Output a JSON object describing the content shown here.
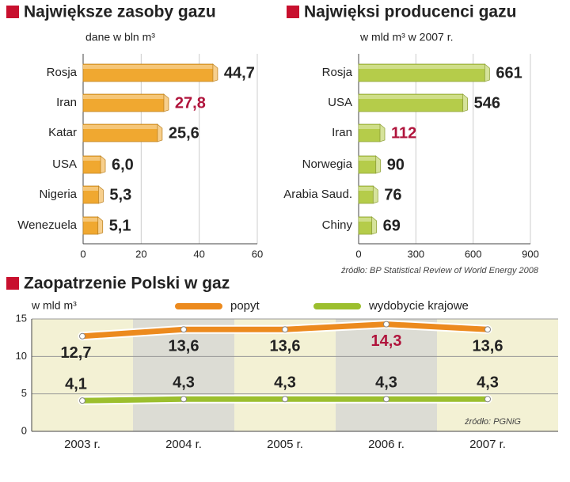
{
  "chart_data": [
    {
      "type": "hbar",
      "title": "Największe zasoby gazu",
      "subtitle": "dane w bln m³",
      "categories": [
        "Rosja",
        "Iran",
        "Katar",
        "USA",
        "Nigeria",
        "Wenezuela"
      ],
      "values": [
        44.7,
        27.8,
        25.6,
        6.0,
        5.3,
        5.1
      ],
      "value_labels": [
        "44,7",
        "27,8",
        "25,6",
        "6,0",
        "5,3",
        "5,1"
      ],
      "value_label_colors": [
        "#222222",
        "#b0143c",
        "#222222",
        "#222222",
        "#222222",
        "#222222"
      ],
      "color": "#f0a830",
      "xlim": [
        0,
        60
      ],
      "xticks": [
        0,
        20,
        40,
        60
      ],
      "grid": true
    },
    {
      "type": "hbar",
      "title": "Najwięksi producenci gazu",
      "subtitle": "w mld  m³ w 2007 r.",
      "categories": [
        "Rosja",
        "USA",
        "Iran",
        "Norwegia",
        "Arabia Saud.",
        "Chiny"
      ],
      "values": [
        661,
        546,
        112,
        90,
        76,
        69
      ],
      "value_label_colors": [
        "#222222",
        "#222222",
        "#b0143c",
        "#222222",
        "#222222",
        "#222222"
      ],
      "color": "#b5cc4a",
      "xlim": [
        0,
        900
      ],
      "xticks": [
        0,
        300,
        600,
        900
      ],
      "grid": true,
      "source": "źródło: BP Statistical Review of World Energy 2008"
    },
    {
      "type": "line",
      "title": "Zaopatrzenie Polski w gaz",
      "ylabel": "w mld m³",
      "categories": [
        "2003 r.",
        "2004 r.",
        "2005 r.",
        "2006 r.",
        "2007 r."
      ],
      "series": [
        {
          "name": "popyt",
          "color": "#ec8a1e",
          "values": [
            12.7,
            13.6,
            13.6,
            14.3,
            13.6
          ],
          "value_labels": [
            "12,7",
            "13,6",
            "13,6",
            "14,3",
            "13,6"
          ],
          "value_label_colors": [
            "#222222",
            "#222222",
            "#222222",
            "#b0143c",
            "#222222"
          ]
        },
        {
          "name": "wydobycie krajowe",
          "color": "#9cbf2e",
          "values": [
            4.1,
            4.3,
            4.3,
            4.3,
            4.3
          ],
          "value_labels": [
            "4,1",
            "4,3",
            "4,3",
            "4,3",
            "4,3"
          ],
          "value_label_colors": [
            "#222222",
            "#222222",
            "#222222",
            "#222222",
            "#222222"
          ]
        }
      ],
      "ylim": [
        0,
        15
      ],
      "yticks": [
        0,
        5,
        10,
        15
      ],
      "grid": true,
      "source": "źródło: PGNiG"
    }
  ]
}
